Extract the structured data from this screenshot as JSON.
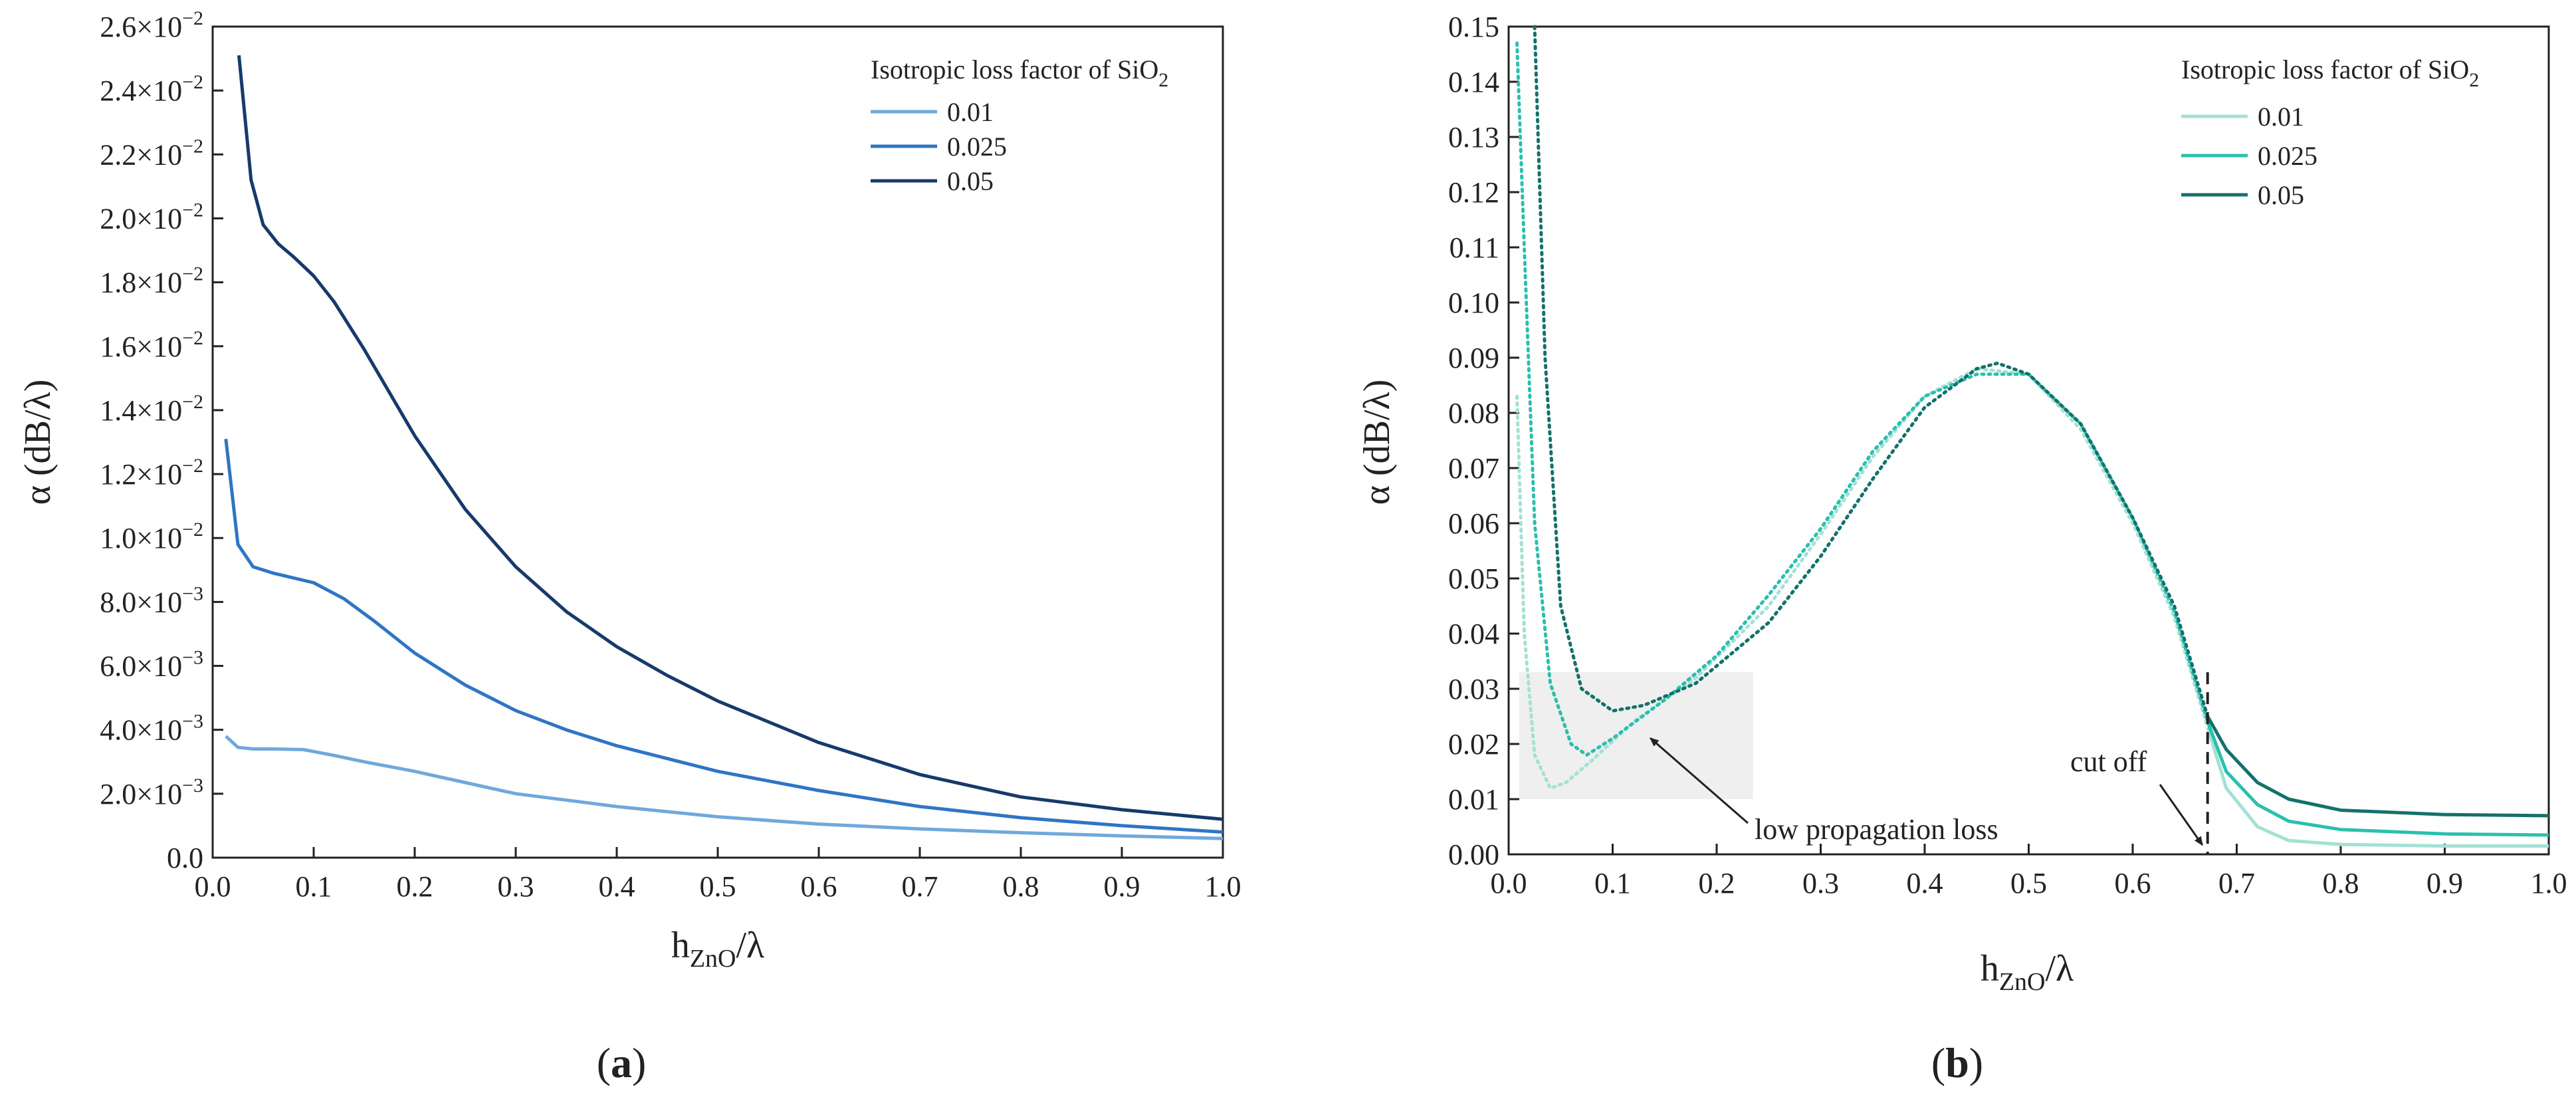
{
  "chart_data": [
    {
      "type": "line",
      "panel_label_open": "(",
      "panel_label_letter": "a",
      "panel_label_close": ")",
      "xlabel_main": "h",
      "xlabel_sub": "ZnO",
      "xlabel_tail": "/λ",
      "ylabel": "α (dB/λ)",
      "xlim": [
        0,
        1.0
      ],
      "ylim": [
        0,
        0.026
      ],
      "x_ticks": [
        {
          "value": 0.0,
          "label": "0.0"
        },
        {
          "value": 0.1,
          "label": "0.1"
        },
        {
          "value": 0.2,
          "label": "0.2"
        },
        {
          "value": 0.3,
          "label": "0.3"
        },
        {
          "value": 0.4,
          "label": "0.4"
        },
        {
          "value": 0.5,
          "label": "0.5"
        },
        {
          "value": 0.6,
          "label": "0.6"
        },
        {
          "value": 0.7,
          "label": "0.7"
        },
        {
          "value": 0.8,
          "label": "0.8"
        },
        {
          "value": 0.9,
          "label": "0.9"
        },
        {
          "value": 1.0,
          "label": "1.0"
        }
      ],
      "y_ticks": [
        {
          "value": 0.0,
          "mant": "0.0",
          "exp": ""
        },
        {
          "value": 0.002,
          "mant": "2.0×10",
          "exp": "−3"
        },
        {
          "value": 0.004,
          "mant": "4.0×10",
          "exp": "−3"
        },
        {
          "value": 0.006,
          "mant": "6.0×10",
          "exp": "−3"
        },
        {
          "value": 0.008,
          "mant": "8.0×10",
          "exp": "−3"
        },
        {
          "value": 0.01,
          "mant": "1.0×10",
          "exp": "−2"
        },
        {
          "value": 0.012,
          "mant": "1.2×10",
          "exp": "−2"
        },
        {
          "value": 0.014,
          "mant": "1.4×10",
          "exp": "−2"
        },
        {
          "value": 0.016,
          "mant": "1.6×10",
          "exp": "−2"
        },
        {
          "value": 0.018,
          "mant": "1.8×10",
          "exp": "−2"
        },
        {
          "value": 0.02,
          "mant": "2.0×10",
          "exp": "−2"
        },
        {
          "value": 0.022,
          "mant": "2.2×10",
          "exp": "−2"
        },
        {
          "value": 0.024,
          "mant": "2.4×10",
          "exp": "−2"
        },
        {
          "value": 0.026,
          "mant": "2.6×10",
          "exp": "−2"
        }
      ],
      "legend_title_main": "Isotropic loss factor of SiO",
      "legend_title_sub": "2",
      "legend_position": "top-right",
      "series": [
        {
          "name": "0.01",
          "color": "#6fa8dc",
          "style": "solid",
          "x": [
            0.013,
            0.025,
            0.04,
            0.06,
            0.09,
            0.12,
            0.15,
            0.2,
            0.25,
            0.3,
            0.4,
            0.5,
            0.6,
            0.7,
            0.8,
            0.9,
            1.0
          ],
          "y": [
            0.0038,
            0.00345,
            0.0034,
            0.0034,
            0.00338,
            0.0032,
            0.003,
            0.0027,
            0.00235,
            0.002,
            0.0016,
            0.00128,
            0.00105,
            0.0009,
            0.00078,
            0.00068,
            0.0006
          ]
        },
        {
          "name": "0.025",
          "color": "#2f75c4",
          "style": "solid",
          "x": [
            0.013,
            0.025,
            0.04,
            0.06,
            0.1,
            0.13,
            0.16,
            0.2,
            0.25,
            0.3,
            0.35,
            0.4,
            0.5,
            0.6,
            0.7,
            0.8,
            0.9,
            1.0
          ],
          "y": [
            0.0131,
            0.0098,
            0.0091,
            0.0089,
            0.0086,
            0.0081,
            0.0074,
            0.0064,
            0.0054,
            0.0046,
            0.004,
            0.0035,
            0.0027,
            0.0021,
            0.0016,
            0.00125,
            0.001,
            0.0008
          ]
        },
        {
          "name": "0.05",
          "color": "#173a6b",
          "style": "solid",
          "x": [
            0.026,
            0.038,
            0.05,
            0.065,
            0.08,
            0.1,
            0.12,
            0.15,
            0.2,
            0.25,
            0.3,
            0.35,
            0.4,
            0.45,
            0.5,
            0.6,
            0.7,
            0.8,
            0.9,
            1.0
          ],
          "y": [
            0.0251,
            0.0212,
            0.0198,
            0.0192,
            0.0188,
            0.0182,
            0.0174,
            0.0159,
            0.0132,
            0.0109,
            0.0091,
            0.0077,
            0.0066,
            0.0057,
            0.0049,
            0.0036,
            0.0026,
            0.0019,
            0.0015,
            0.0012
          ]
        }
      ]
    },
    {
      "type": "line",
      "panel_label_open": "(",
      "panel_label_letter": "b",
      "panel_label_close": ")",
      "xlabel_main": "h",
      "xlabel_sub": "ZnO",
      "xlabel_tail": "/λ",
      "ylabel": "α (dB/λ)",
      "xlim": [
        0,
        1.0
      ],
      "ylim": [
        0,
        0.15
      ],
      "x_ticks": [
        {
          "value": 0.0,
          "label": "0.0"
        },
        {
          "value": 0.1,
          "label": "0.1"
        },
        {
          "value": 0.2,
          "label": "0.2"
        },
        {
          "value": 0.3,
          "label": "0.3"
        },
        {
          "value": 0.4,
          "label": "0.4"
        },
        {
          "value": 0.5,
          "label": "0.5"
        },
        {
          "value": 0.6,
          "label": "0.6"
        },
        {
          "value": 0.7,
          "label": "0.7"
        },
        {
          "value": 0.8,
          "label": "0.8"
        },
        {
          "value": 0.9,
          "label": "0.9"
        },
        {
          "value": 1.0,
          "label": "1.0"
        }
      ],
      "y_ticks": [
        {
          "value": 0.0,
          "label": "0.00"
        },
        {
          "value": 0.01,
          "label": "0.01"
        },
        {
          "value": 0.02,
          "label": "0.02"
        },
        {
          "value": 0.03,
          "label": "0.03"
        },
        {
          "value": 0.04,
          "label": "0.04"
        },
        {
          "value": 0.05,
          "label": "0.05"
        },
        {
          "value": 0.06,
          "label": "0.06"
        },
        {
          "value": 0.07,
          "label": "0.07"
        },
        {
          "value": 0.08,
          "label": "0.08"
        },
        {
          "value": 0.09,
          "label": "0.09"
        },
        {
          "value": 0.1,
          "label": "0.10"
        },
        {
          "value": 0.11,
          "label": "0.11"
        },
        {
          "value": 0.12,
          "label": "0.12"
        },
        {
          "value": 0.13,
          "label": "0.13"
        },
        {
          "value": 0.14,
          "label": "0.14"
        },
        {
          "value": 0.15,
          "label": "0.15"
        }
      ],
      "legend_title_main": "Isotropic loss factor of SiO",
      "legend_title_sub": "2",
      "legend_position": "top-right",
      "cutoff_x": 0.672,
      "highlight_region": {
        "x": [
          0.01,
          0.235
        ],
        "y": [
          0.01,
          0.033
        ]
      },
      "annotations": [
        {
          "text": "cut off",
          "target_x": 0.672,
          "target_y": 0.001
        },
        {
          "text": "low propagation loss",
          "target_x": 0.13,
          "target_y": 0.022
        }
      ],
      "series": [
        {
          "name": "0.01",
          "color": "#a3e1d4",
          "dotted": {
            "x": [
              0.008,
              0.015,
              0.025,
              0.04,
              0.055,
              0.08,
              0.12,
              0.18,
              0.25,
              0.3,
              0.35,
              0.4,
              0.45,
              0.5,
              0.55,
              0.6,
              0.64,
              0.672
            ],
            "y": [
              0.083,
              0.04,
              0.018,
              0.012,
              0.013,
              0.017,
              0.024,
              0.032,
              0.045,
              0.058,
              0.072,
              0.083,
              0.088,
              0.087,
              0.077,
              0.06,
              0.043,
              0.023
            ]
          },
          "solid": {
            "x": [
              0.672,
              0.69,
              0.72,
              0.75,
              0.8,
              0.9,
              1.0
            ],
            "y": [
              0.023,
              0.012,
              0.005,
              0.0025,
              0.0018,
              0.0015,
              0.0015
            ]
          }
        },
        {
          "name": "0.025",
          "color": "#2bbfae",
          "dotted": {
            "x": [
              0.008,
              0.015,
              0.025,
              0.04,
              0.06,
              0.075,
              0.1,
              0.15,
              0.2,
              0.25,
              0.3,
              0.35,
              0.4,
              0.45,
              0.5,
              0.55,
              0.6,
              0.64,
              0.672
            ],
            "y": [
              0.147,
              0.11,
              0.06,
              0.031,
              0.02,
              0.018,
              0.021,
              0.028,
              0.036,
              0.047,
              0.059,
              0.073,
              0.083,
              0.087,
              0.087,
              0.078,
              0.061,
              0.044,
              0.024
            ]
          },
          "solid": {
            "x": [
              0.672,
              0.69,
              0.72,
              0.75,
              0.8,
              0.9,
              1.0
            ],
            "y": [
              0.024,
              0.015,
              0.009,
              0.006,
              0.0045,
              0.0037,
              0.0035
            ]
          }
        },
        {
          "name": "0.05",
          "color": "#14716b",
          "dotted": {
            "x": [
              0.025,
              0.035,
              0.05,
              0.07,
              0.1,
              0.13,
              0.18,
              0.25,
              0.3,
              0.35,
              0.4,
              0.45,
              0.47,
              0.5,
              0.55,
              0.6,
              0.64,
              0.672
            ],
            "y": [
              0.15,
              0.09,
              0.045,
              0.03,
              0.026,
              0.027,
              0.031,
              0.042,
              0.054,
              0.068,
              0.081,
              0.088,
              0.089,
              0.087,
              0.078,
              0.061,
              0.045,
              0.025
            ]
          },
          "solid": {
            "x": [
              0.672,
              0.69,
              0.72,
              0.75,
              0.8,
              0.9,
              1.0
            ],
            "y": [
              0.025,
              0.019,
              0.013,
              0.01,
              0.008,
              0.0072,
              0.007
            ]
          }
        }
      ]
    }
  ]
}
